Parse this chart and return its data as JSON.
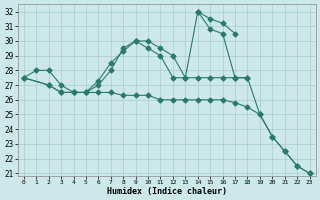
{
  "xlabel": "Humidex (Indice chaleur)",
  "bg_color": "#cce8e8",
  "grid_color": "#aacccc",
  "line_color": "#2a7a6a",
  "xlim": [
    -0.5,
    23.5
  ],
  "ylim": [
    20.8,
    32.5
  ],
  "xticks": [
    0,
    1,
    2,
    3,
    4,
    5,
    6,
    7,
    8,
    9,
    10,
    11,
    12,
    13,
    14,
    15,
    16,
    17,
    18,
    19,
    20,
    21,
    22,
    23
  ],
  "yticks": [
    21,
    22,
    23,
    24,
    25,
    26,
    27,
    28,
    29,
    30,
    31,
    32
  ],
  "line1_x": [
    0,
    1,
    2,
    3,
    4,
    5,
    6,
    7,
    8,
    9,
    10,
    11,
    12,
    13,
    14,
    15,
    16,
    17,
    18
  ],
  "line1_y": [
    27.5,
    28,
    28,
    27,
    26.5,
    26.5,
    27.3,
    28.5,
    29.3,
    30,
    30,
    29.5,
    29,
    27.5,
    27.5,
    27.5,
    27.5,
    27.5,
    27.5
  ],
  "line2_x": [
    0,
    2,
    3,
    4,
    5,
    6,
    7,
    8,
    9,
    10,
    11,
    12,
    13,
    14,
    15,
    16,
    17
  ],
  "line2_y": [
    27.5,
    27,
    26.5,
    26.5,
    26.5,
    27,
    28,
    29.5,
    30,
    29.5,
    29,
    27.5,
    27.5,
    32,
    31.5,
    31.2,
    30.5
  ],
  "line3_x": [
    14,
    15,
    16,
    17,
    18,
    19,
    20,
    21,
    22,
    23
  ],
  "line3_y": [
    32,
    30.8,
    30.5,
    27.5,
    27.5,
    25,
    23.5,
    22.5,
    21.5,
    21
  ],
  "line4_x": [
    0,
    2,
    3,
    4,
    5,
    6,
    7,
    8,
    9,
    10,
    11,
    12,
    13,
    14,
    15,
    16,
    17,
    18,
    19,
    20,
    21,
    22,
    23
  ],
  "line4_y": [
    27.5,
    27,
    26.5,
    26.5,
    26.5,
    26.5,
    26.5,
    26.3,
    26.3,
    26.3,
    26,
    26,
    26,
    26,
    26,
    26,
    25.8,
    25.5,
    25,
    23.5,
    22.5,
    21.5,
    21
  ]
}
